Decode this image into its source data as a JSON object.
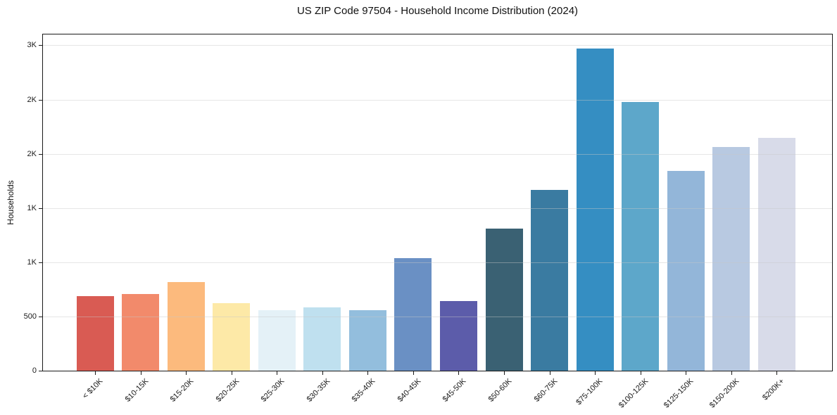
{
  "chart_data": {
    "type": "bar",
    "title": "US ZIP Code 97504 - Household Income Distribution (2024)",
    "xlabel": "",
    "ylabel": "Households",
    "categories": [
      "< $10K",
      "$10-15K",
      "$15-20K",
      "$20-25K",
      "$25-30K",
      "$30-35K",
      "$35-40K",
      "$40-45K",
      "$45-50K",
      "$50-60K",
      "$60-75K",
      "$75-100K",
      "$100-125K",
      "$125-150K",
      "$150-200K",
      "$200K+"
    ],
    "values": [
      690,
      710,
      815,
      625,
      555,
      585,
      555,
      1040,
      640,
      1310,
      1670,
      2970,
      2475,
      1845,
      2065,
      2145
    ],
    "bar_colors": [
      "#d95b53",
      "#f28a6b",
      "#fcba7d",
      "#fde9a7",
      "#e4f1f7",
      "#bfe0ef",
      "#93bedd",
      "#6a90c4",
      "#5c5caa",
      "#3a6173",
      "#3a7ba1",
      "#358ec2",
      "#5da7ca",
      "#93b6d9",
      "#b8c9e1",
      "#d8dbe9"
    ],
    "ylim": [
      0,
      3100
    ],
    "yticks": [
      {
        "value": 0,
        "label": "0"
      },
      {
        "value": 500,
        "label": "500"
      },
      {
        "value": 1000,
        "label": "1K"
      },
      {
        "value": 1500,
        "label": "1K"
      },
      {
        "value": 2000,
        "label": "2K"
      },
      {
        "value": 2500,
        "label": "2K"
      },
      {
        "value": 3000,
        "label": "3K"
      }
    ],
    "grid": "horizontal",
    "gridline_color": "#e7e7e7",
    "axis_color": "#1a1a1a",
    "legend": "none"
  }
}
